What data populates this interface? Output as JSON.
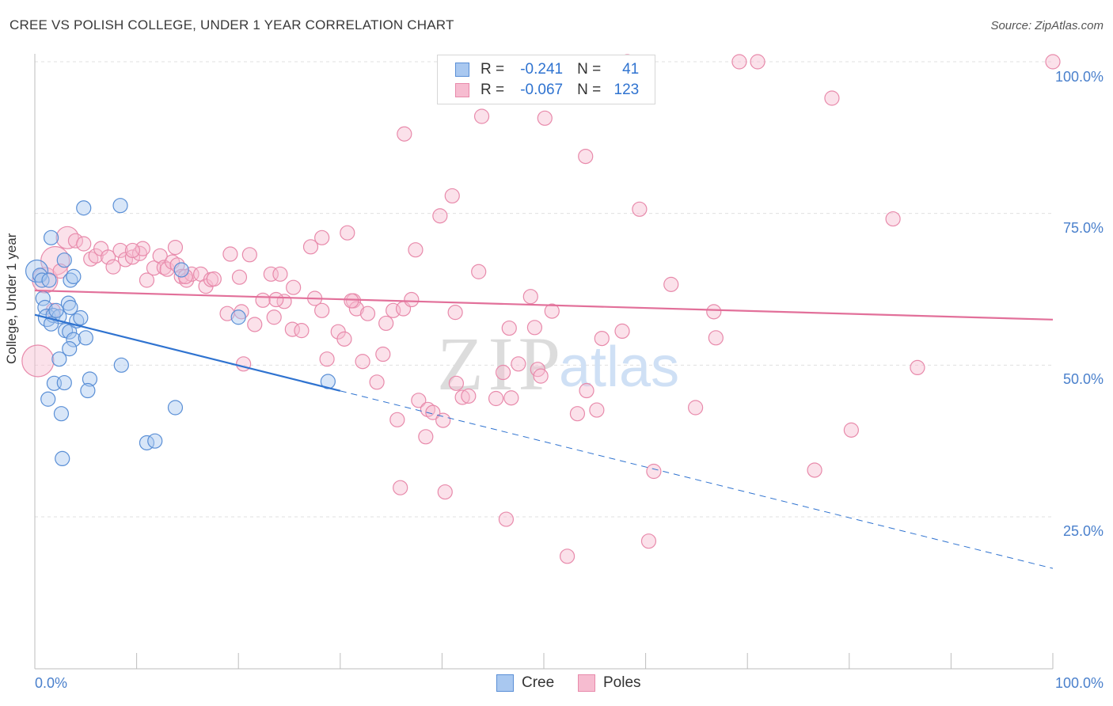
{
  "title": "CREE VS POLISH COLLEGE, UNDER 1 YEAR CORRELATION CHART",
  "source": "Source: ZipAtlas.com",
  "watermark": {
    "zip": "ZIP",
    "atlas": "atlas"
  },
  "legend": {
    "cree": {
      "r_label": "R =",
      "r": "-0.241",
      "n_label": "N =",
      "n": "41"
    },
    "poles": {
      "r_label": "R =",
      "r": "-0.067",
      "n_label": "N =",
      "n": "123"
    }
  },
  "bottom_legend": {
    "cree": "Cree",
    "poles": "Poles"
  },
  "colors": {
    "cree_fill": "#a9c8f0",
    "cree_stroke": "#5a8fd6",
    "cree_line": "#2f73d0",
    "poles_fill": "#f6bcd0",
    "poles_stroke": "#e88aab",
    "poles_line": "#e2709a",
    "tick_text": "#4a80cc",
    "grid": "#e0e0e0"
  },
  "chart_data": {
    "type": "scatter",
    "title": "CREE VS POLISH COLLEGE, UNDER 1 YEAR CORRELATION CHART",
    "xlabel": "",
    "ylabel": "College, Under 1 year",
    "xlim": [
      0,
      100
    ],
    "ylim": [
      0,
      101
    ],
    "x_tick_labels": [
      "0.0%",
      "100.0%"
    ],
    "y_ticks": [
      25,
      50,
      75,
      100
    ],
    "y_tick_labels": [
      "25.0%",
      "50.0%",
      "75.0%",
      "100.0%"
    ],
    "grid": true,
    "series": [
      {
        "name": "Cree",
        "r": -0.241,
        "n": 41,
        "trend": {
          "x_start": 0,
          "y_start": 58.3,
          "x_solid_end": 30,
          "x_end": 100,
          "y_end": 16.5
        },
        "points": [
          [
            0.2,
            65.5,
            14
          ],
          [
            0.5,
            64.8,
            9
          ],
          [
            0.8,
            61.0,
            9
          ],
          [
            1.0,
            59.5,
            9
          ],
          [
            1.2,
            57.8,
            11
          ],
          [
            0.7,
            64.0,
            9
          ],
          [
            1.4,
            64.0,
            9
          ],
          [
            1.8,
            58.2,
            9
          ],
          [
            2.4,
            58.0,
            9
          ],
          [
            1.6,
            71.0,
            9
          ],
          [
            2.9,
            67.3,
            9
          ],
          [
            3.5,
            64.0,
            9
          ],
          [
            3.8,
            64.6,
            9
          ],
          [
            3.3,
            60.2,
            9
          ],
          [
            3.5,
            59.5,
            9
          ],
          [
            3.0,
            55.7,
            9
          ],
          [
            3.4,
            55.5,
            9
          ],
          [
            3.8,
            54.2,
            9
          ],
          [
            4.1,
            57.3,
            9
          ],
          [
            4.5,
            57.8,
            9
          ],
          [
            5.0,
            54.5,
            9
          ],
          [
            3.4,
            52.7,
            9
          ],
          [
            2.4,
            51.0,
            9
          ],
          [
            1.9,
            47.0,
            9
          ],
          [
            2.9,
            47.1,
            9
          ],
          [
            5.4,
            47.7,
            9
          ],
          [
            5.2,
            45.8,
            9
          ],
          [
            1.3,
            44.4,
            9
          ],
          [
            2.6,
            42.0,
            9
          ],
          [
            2.7,
            34.6,
            9
          ],
          [
            4.8,
            75.9,
            9
          ],
          [
            8.4,
            76.3,
            9
          ],
          [
            8.5,
            50.0,
            9
          ],
          [
            11.0,
            37.2,
            9
          ],
          [
            11.8,
            37.5,
            9
          ],
          [
            13.8,
            43.0,
            9
          ],
          [
            14.4,
            65.7,
            9
          ],
          [
            20.0,
            57.9,
            9
          ],
          [
            28.8,
            47.3,
            9
          ],
          [
            1.6,
            56.8,
            9
          ],
          [
            2.1,
            59.0,
            9
          ]
        ]
      },
      {
        "name": "Poles",
        "r": -0.067,
        "n": 123,
        "trend": {
          "x_start": 0,
          "y_start": 62.3,
          "x_end": 100,
          "y_end": 57.5
        },
        "points": [
          [
            0.3,
            50.7,
            20
          ],
          [
            1.0,
            64.0,
            16
          ],
          [
            2.0,
            67.2,
            18
          ],
          [
            3.2,
            71.0,
            14
          ],
          [
            1.8,
            59.0,
            9
          ],
          [
            2.5,
            65.5,
            9
          ],
          [
            4.0,
            70.5,
            9
          ],
          [
            4.8,
            70.0,
            9
          ],
          [
            5.5,
            67.5,
            9
          ],
          [
            6.0,
            68.0,
            9
          ],
          [
            6.5,
            69.2,
            9
          ],
          [
            7.2,
            67.8,
            9
          ],
          [
            7.7,
            66.2,
            9
          ],
          [
            8.4,
            68.9,
            9
          ],
          [
            8.9,
            67.4,
            9
          ],
          [
            9.6,
            67.8,
            9
          ],
          [
            10.3,
            68.4,
            9
          ],
          [
            10.6,
            69.2,
            9
          ],
          [
            11.0,
            64.0,
            9
          ],
          [
            11.7,
            66.0,
            9
          ],
          [
            12.3,
            68.0,
            9
          ],
          [
            12.7,
            66.1,
            9
          ],
          [
            13.0,
            65.8,
            9
          ],
          [
            13.5,
            67.0,
            9
          ],
          [
            14.0,
            66.5,
            9
          ],
          [
            14.4,
            64.6,
            9
          ],
          [
            14.9,
            64.0,
            9
          ],
          [
            15.4,
            65.0,
            9
          ],
          [
            16.3,
            65.0,
            9
          ],
          [
            16.8,
            63.0,
            9
          ],
          [
            17.3,
            64.1,
            9
          ],
          [
            17.6,
            64.2,
            9
          ],
          [
            19.2,
            68.3,
            9
          ],
          [
            20.1,
            64.5,
            9
          ],
          [
            21.1,
            68.2,
            9
          ],
          [
            23.2,
            65.0,
            9
          ],
          [
            24.1,
            65.0,
            9
          ],
          [
            24.5,
            60.5,
            9
          ],
          [
            23.7,
            60.8,
            9
          ],
          [
            22.4,
            60.7,
            9
          ],
          [
            20.3,
            58.8,
            9
          ],
          [
            18.9,
            58.5,
            9
          ],
          [
            20.5,
            50.2,
            9
          ],
          [
            21.6,
            56.7,
            9
          ],
          [
            23.5,
            57.9,
            9
          ],
          [
            25.3,
            55.9,
            9
          ],
          [
            26.2,
            55.7,
            9
          ],
          [
            27.5,
            61.0,
            9
          ],
          [
            28.2,
            59.0,
            9
          ],
          [
            27.1,
            69.5,
            9
          ],
          [
            28.2,
            71.0,
            9
          ],
          [
            30.7,
            71.8,
            9
          ],
          [
            25.4,
            62.8,
            9
          ],
          [
            28.7,
            51.0,
            9
          ],
          [
            29.8,
            55.5,
            9
          ],
          [
            30.4,
            54.3,
            9
          ],
          [
            31.3,
            60.6,
            9
          ],
          [
            31.6,
            59.3,
            9
          ],
          [
            32.2,
            50.6,
            9
          ],
          [
            32.7,
            58.5,
            9
          ],
          [
            33.6,
            47.2,
            9
          ],
          [
            34.2,
            51.8,
            9
          ],
          [
            34.5,
            56.9,
            9
          ],
          [
            35.2,
            59.0,
            9
          ],
          [
            36.2,
            59.3,
            9
          ],
          [
            37.0,
            60.8,
            9
          ],
          [
            35.6,
            41.0,
            9
          ],
          [
            37.7,
            44.2,
            9
          ],
          [
            38.4,
            38.2,
            9
          ],
          [
            38.6,
            42.7,
            9
          ],
          [
            39.1,
            42.2,
            9
          ],
          [
            40.1,
            40.9,
            9
          ],
          [
            41.4,
            47.0,
            9
          ],
          [
            42.0,
            44.7,
            9
          ],
          [
            42.6,
            44.9,
            9
          ],
          [
            45.3,
            44.5,
            9
          ],
          [
            46.8,
            44.6,
            9
          ],
          [
            46.0,
            48.8,
            9
          ],
          [
            46.6,
            56.1,
            9
          ],
          [
            47.5,
            50.2,
            9
          ],
          [
            49.1,
            56.2,
            9
          ],
          [
            49.4,
            49.3,
            9
          ],
          [
            50.8,
            58.9,
            9
          ],
          [
            48.7,
            61.3,
            9
          ],
          [
            49.7,
            48.2,
            9
          ],
          [
            53.3,
            42.0,
            9
          ],
          [
            54.2,
            45.8,
            9
          ],
          [
            55.2,
            42.6,
            9
          ],
          [
            57.7,
            55.6,
            9
          ],
          [
            59.4,
            75.7,
            9
          ],
          [
            55.7,
            54.4,
            9
          ],
          [
            60.8,
            32.5,
            9
          ],
          [
            62.5,
            63.3,
            9
          ],
          [
            64.9,
            43.0,
            9
          ],
          [
            66.9,
            54.5,
            9
          ],
          [
            66.7,
            58.8,
            9
          ],
          [
            39.8,
            74.6,
            9
          ],
          [
            41.0,
            77.9,
            9
          ],
          [
            43.6,
            65.4,
            9
          ],
          [
            41.3,
            58.7,
            9
          ],
          [
            36.3,
            88.1,
            9
          ],
          [
            43.9,
            91.0,
            9
          ],
          [
            50.1,
            90.7,
            9
          ],
          [
            54.1,
            84.4,
            9
          ],
          [
            58.2,
            100.0,
            9
          ],
          [
            69.2,
            100.0,
            9
          ],
          [
            71.0,
            100.0,
            9
          ],
          [
            78.3,
            94.0,
            9
          ],
          [
            100.0,
            100.0,
            9
          ],
          [
            84.3,
            74.1,
            9
          ],
          [
            86.7,
            49.6,
            9
          ],
          [
            76.6,
            32.7,
            9
          ],
          [
            80.2,
            39.3,
            9
          ],
          [
            35.9,
            29.8,
            9
          ],
          [
            40.3,
            29.1,
            9
          ],
          [
            46.3,
            24.6,
            9
          ],
          [
            52.3,
            18.5,
            9
          ],
          [
            60.3,
            21.0,
            9
          ],
          [
            37.4,
            69.0,
            9
          ],
          [
            13.8,
            69.4,
            9
          ],
          [
            9.6,
            68.9,
            9
          ],
          [
            14.8,
            64.6,
            9
          ],
          [
            31.1,
            60.6,
            9
          ]
        ]
      }
    ]
  }
}
